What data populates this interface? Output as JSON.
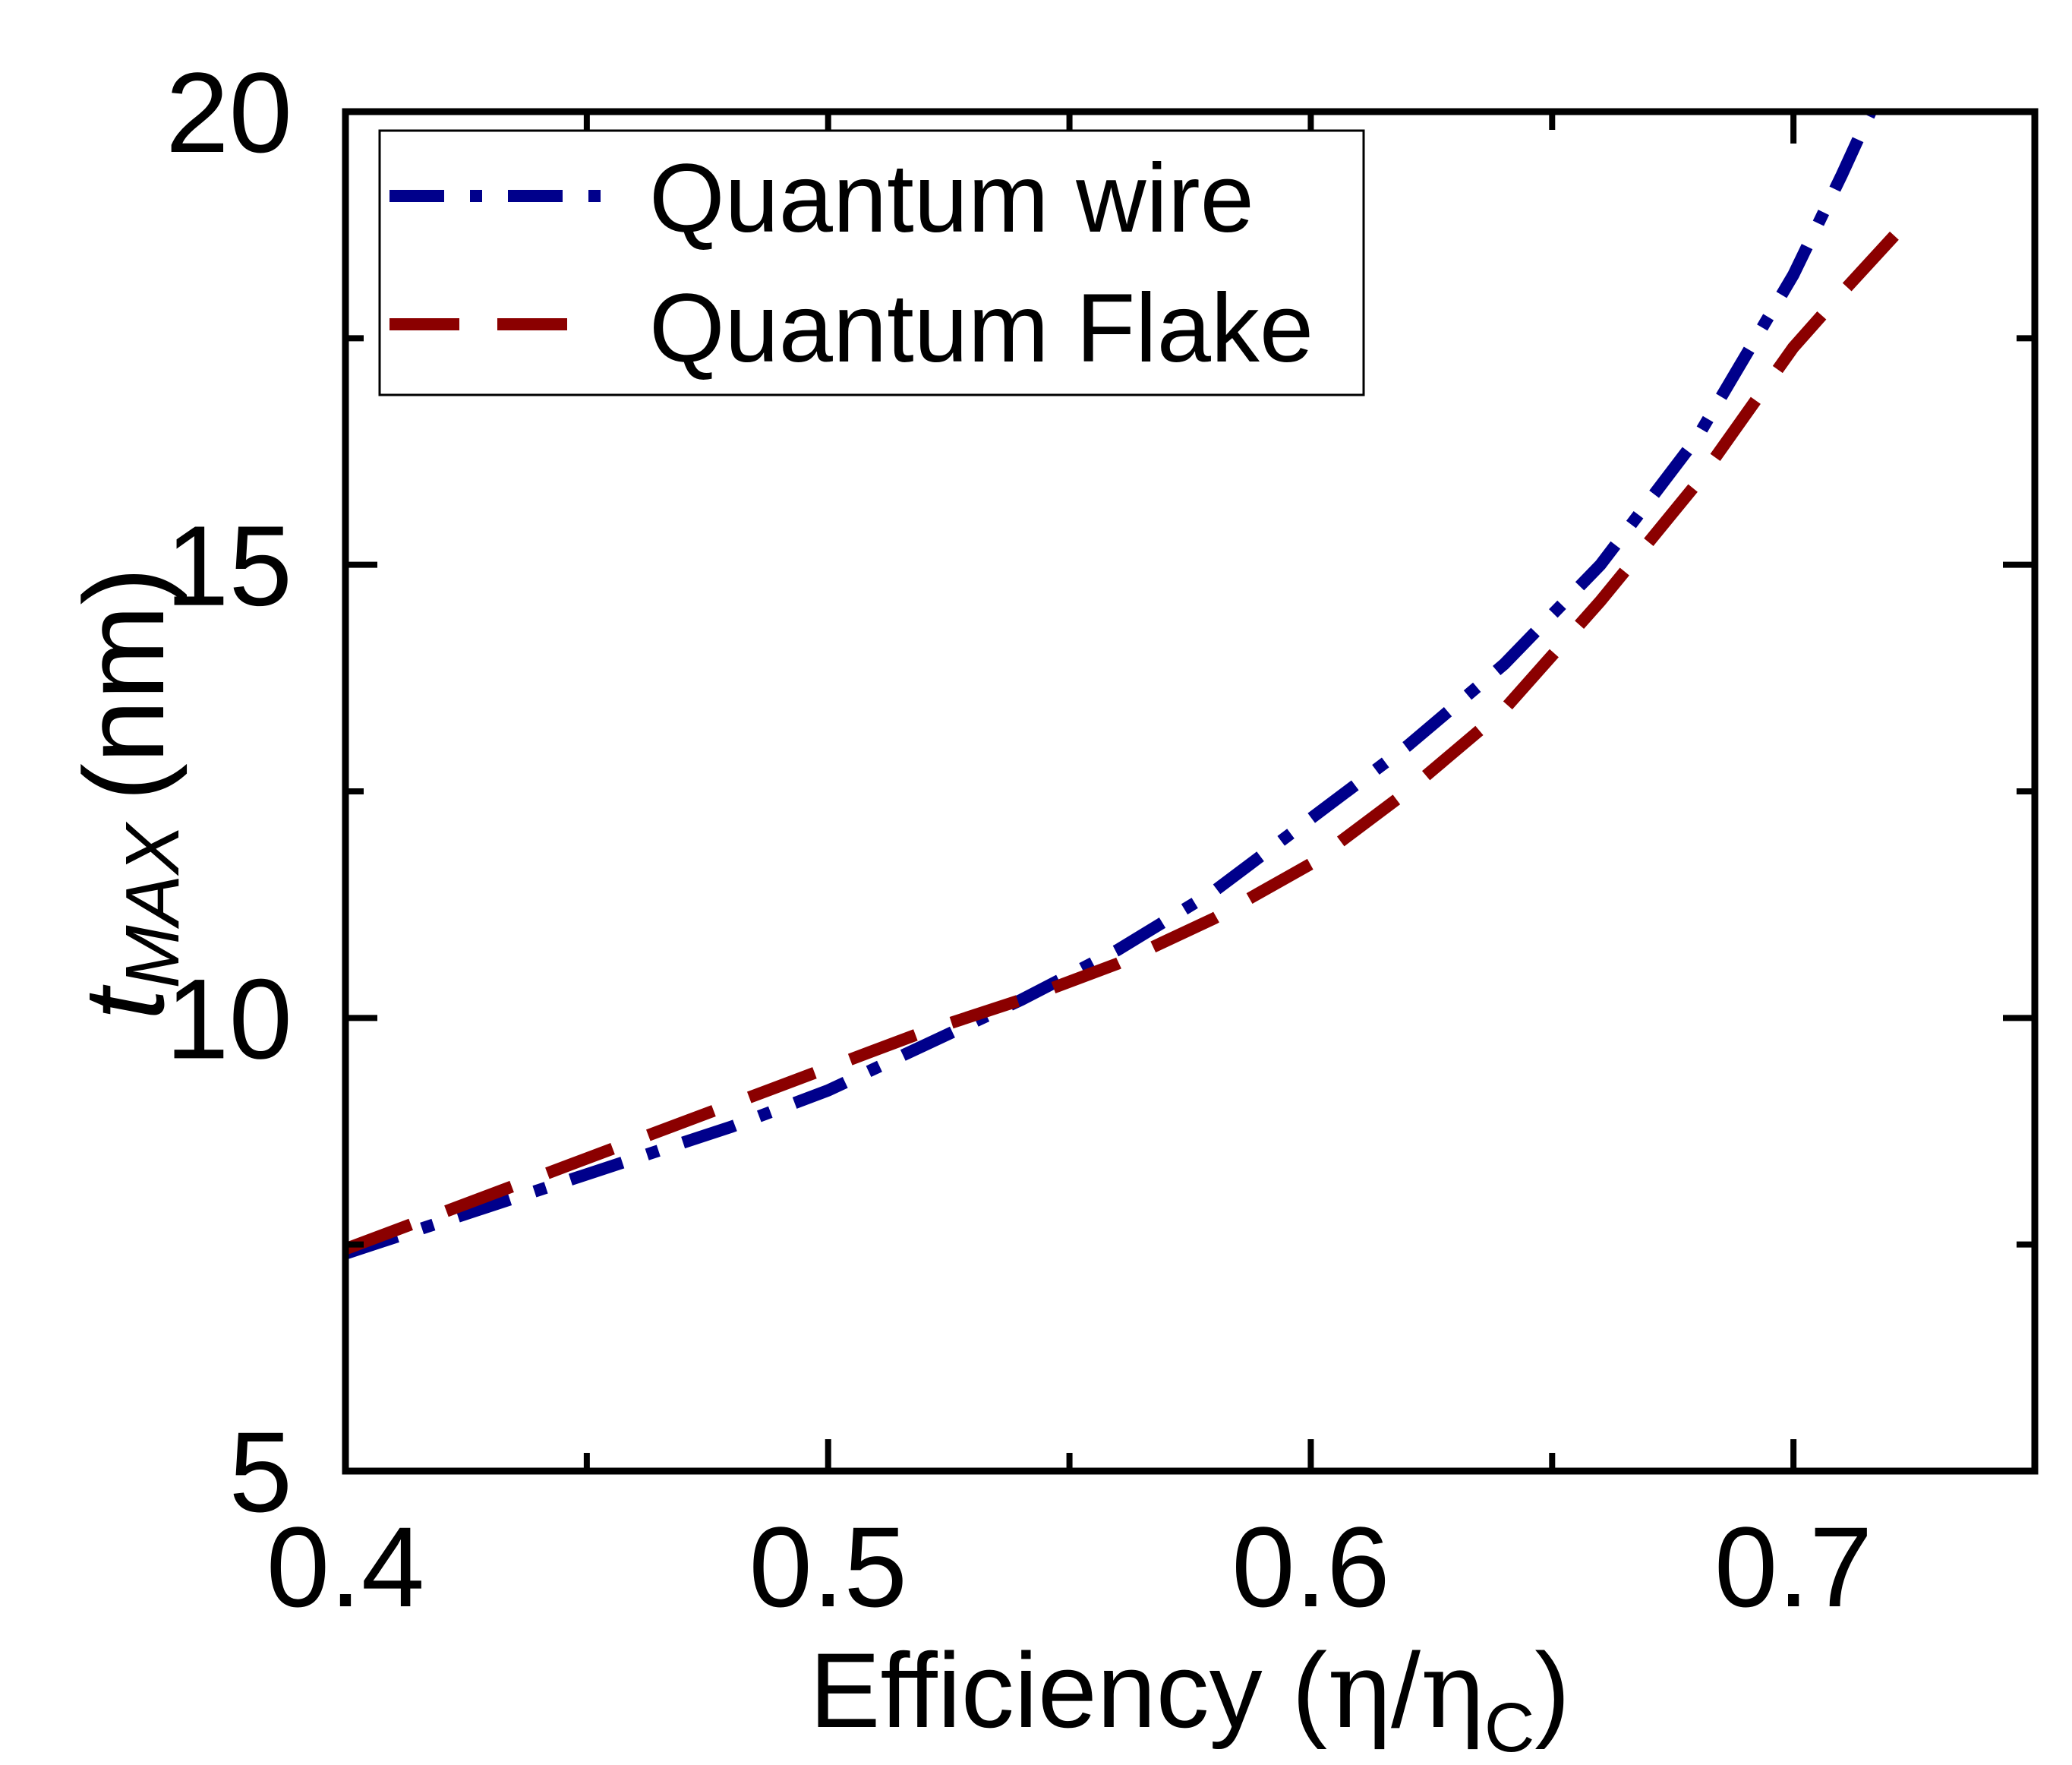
{
  "chart_data": {
    "type": "line",
    "title": "",
    "xlabel": {
      "main": "Efficiency (",
      "eta": "η",
      "slash": "/",
      "eta2": "η",
      "sub": "C",
      "close": ")"
    },
    "ylabel": {
      "main": "t",
      "sub": "MAX",
      "unit": "(nm)"
    },
    "xlim": [
      0.4,
      0.75
    ],
    "ylim": [
      5,
      20
    ],
    "x_ticks": [
      0.4,
      0.5,
      0.6,
      0.7
    ],
    "x_tick_labels": [
      "0.4",
      "0.5",
      "0.6",
      "0.7"
    ],
    "x_minor_ticks": [
      0.45,
      0.55,
      0.65
    ],
    "y_ticks": [
      5,
      10,
      15,
      20
    ],
    "y_tick_labels": [
      "5",
      "10",
      "15",
      "20"
    ],
    "y_minor_ticks": [
      7.5,
      12.5,
      17.5
    ],
    "grid": false,
    "legend_position": "top-left",
    "series": [
      {
        "name": "Quantum wire",
        "color": "#00008B",
        "style": "dash-dot",
        "x": [
          0.4,
          0.42,
          0.44,
          0.46,
          0.48,
          0.5,
          0.52,
          0.54,
          0.56,
          0.58,
          0.6,
          0.62,
          0.64,
          0.66,
          0.68,
          0.7,
          0.71,
          0.716
        ],
        "y": [
          7.4,
          7.75,
          8.1,
          8.45,
          8.8,
          9.2,
          9.7,
          10.2,
          10.75,
          11.4,
          12.2,
          13.0,
          13.9,
          15.0,
          16.4,
          18.2,
          19.3,
          20.0
        ]
      },
      {
        "name": "Quantum Flake",
        "color": "#8B0000",
        "style": "dash",
        "x": [
          0.4,
          0.42,
          0.44,
          0.46,
          0.48,
          0.5,
          0.52,
          0.54,
          0.56,
          0.58,
          0.6,
          0.62,
          0.64,
          0.66,
          0.68,
          0.7,
          0.71,
          0.7255
        ],
        "y": [
          7.45,
          7.85,
          8.25,
          8.65,
          9.05,
          9.45,
          9.85,
          10.2,
          10.6,
          11.1,
          11.7,
          12.5,
          13.4,
          14.6,
          15.9,
          17.4,
          18.0,
          18.9
        ]
      }
    ]
  }
}
